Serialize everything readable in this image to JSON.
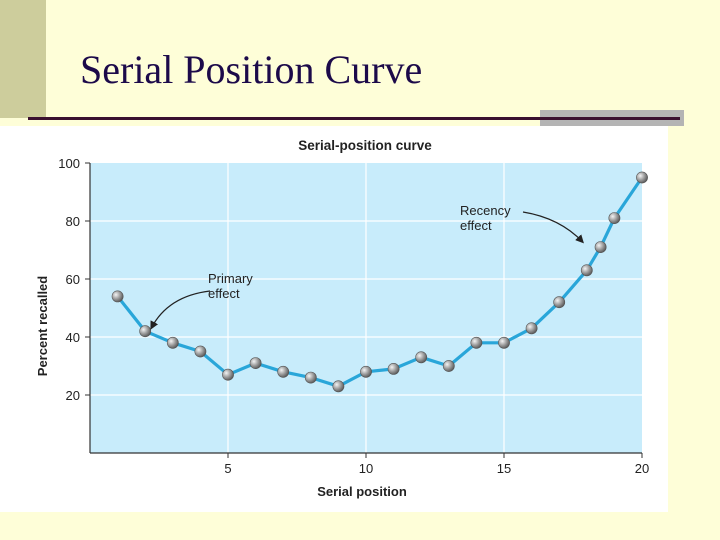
{
  "slide": {
    "title": "Serial Position Curve"
  },
  "colors": {
    "plot_bg": "#c8ecfb",
    "line": "#29a6d9",
    "grid": "#ffffff",
    "marker": "#8f8f8f",
    "text": "#222222"
  },
  "chart_data": {
    "type": "line",
    "title": "Serial-position curve",
    "xlabel": "Serial position",
    "ylabel": "Percent recalled",
    "xlim": [
      0,
      20
    ],
    "ylim": [
      0,
      100
    ],
    "xticks": [
      5,
      10,
      15,
      20
    ],
    "yticks": [
      20,
      40,
      60,
      80,
      100
    ],
    "grid": true,
    "x": [
      1,
      2,
      3,
      4,
      5,
      6,
      7,
      8,
      9,
      10,
      11,
      12,
      13,
      14,
      15,
      16,
      17,
      18,
      18.5,
      19,
      20
    ],
    "y": [
      54,
      42,
      38,
      35,
      27,
      31,
      28,
      26,
      23,
      28,
      29,
      33,
      30,
      38,
      38,
      43,
      52,
      63,
      71,
      81,
      95
    ],
    "annotations": [
      {
        "text_lines": [
          "Primary",
          "effect"
        ],
        "target": [
          2,
          42
        ]
      },
      {
        "text_lines": [
          "Recency",
          "effect"
        ],
        "target": [
          18,
          71
        ]
      }
    ]
  }
}
